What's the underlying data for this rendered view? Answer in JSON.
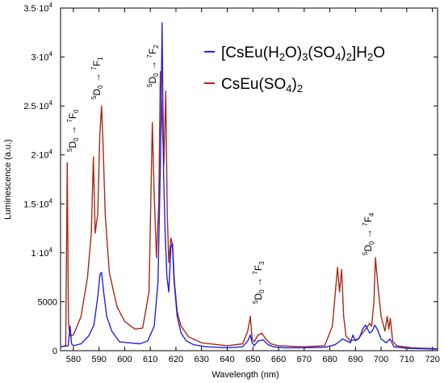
{
  "chart_data": {
    "type": "line",
    "xlabel": "Wavelength (nm)",
    "ylabel": "Luminescence (a.u.)",
    "xlim": [
      575,
      722
    ],
    "ylim": [
      0,
      35000
    ],
    "x_ticks": [
      {
        "value": 580,
        "label": "580"
      },
      {
        "value": 590,
        "label": "590"
      },
      {
        "value": 600,
        "label": "600"
      },
      {
        "value": 610,
        "label": "610"
      },
      {
        "value": 620,
        "label": "620"
      },
      {
        "value": 630,
        "label": "630"
      },
      {
        "value": 640,
        "label": "640"
      },
      {
        "value": 650,
        "label": "650"
      },
      {
        "value": 660,
        "label": "660"
      },
      {
        "value": 670,
        "label": "670"
      },
      {
        "value": 680,
        "label": "680"
      },
      {
        "value": 690,
        "label": "690"
      },
      {
        "value": 700,
        "label": "700"
      },
      {
        "value": 710,
        "label": "710"
      },
      {
        "value": 720,
        "label": "720"
      }
    ],
    "y_ticks": [
      {
        "value": 0,
        "mant": "0",
        "exp": ""
      },
      {
        "value": 5000,
        "mant": "5000",
        "exp": ""
      },
      {
        "value": 10000,
        "mant": "1·10",
        "exp": "4"
      },
      {
        "value": 15000,
        "mant": "1.5·10",
        "exp": "4"
      },
      {
        "value": 20000,
        "mant": "2·10",
        "exp": "4"
      },
      {
        "value": 25000,
        "mant": "2.5·10",
        "exp": "4"
      },
      {
        "value": 30000,
        "mant": "3·10",
        "exp": "4"
      },
      {
        "value": 35000,
        "mant": "3.5·10",
        "exp": "4"
      }
    ],
    "grid": false,
    "legend_position": "top-right",
    "series": [
      {
        "name": "[CsEu(H2O)3(SO4)2]H2O",
        "legend": {
          "a": "[CsEu(H",
          "b": "2",
          "c": "O)",
          "d": "3",
          "e": "(SO",
          "f": "4",
          "g": ")",
          "h": "2",
          "i": "]H",
          "j": "2",
          "k": "O"
        },
        "color": "#2222dd",
        "x": [
          575,
          578,
          578.7,
          579.3,
          580,
          583,
          586,
          588,
          589.5,
          590.4,
          591,
          591.8,
          593,
          595,
          598,
          602,
          606,
          609,
          611.5,
          613,
          614,
          614.6,
          615.2,
          615.8,
          616.5,
          617.2,
          618,
          618.6,
          619.3,
          620.5,
          622,
          624,
          627,
          632,
          640,
          646,
          648,
          649,
          649.7,
          650.5,
          652,
          654,
          656,
          658,
          662,
          670,
          678,
          682,
          685,
          688,
          689,
          690,
          691.5,
          693,
          694,
          695.5,
          696.5,
          697.5,
          698.5,
          700,
          702,
          703.5,
          705,
          710,
          716,
          722
        ],
        "y": [
          400,
          500,
          2500,
          700,
          500,
          700,
          1500,
          2600,
          5500,
          7800,
          8000,
          6000,
          3500,
          2000,
          900,
          800,
          700,
          1000,
          2500,
          7000,
          20000,
          33500,
          18000,
          12000,
          7500,
          6000,
          10500,
          11000,
          7000,
          3500,
          1800,
          1000,
          600,
          400,
          300,
          400,
          1000,
          1600,
          800,
          500,
          1000,
          1100,
          600,
          400,
          300,
          300,
          350,
          600,
          1200,
          800,
          1600,
          1000,
          1300,
          2300,
          2600,
          1800,
          2000,
          2600,
          2200,
          1200,
          800,
          1200,
          400,
          250,
          200,
          150
        ]
      },
      {
        "name": "CsEu(SO4)2",
        "legend": {
          "a": "CsEu(SO",
          "b": "4",
          "c": ")",
          "d": "2"
        },
        "color": "#a52a1a",
        "x": [
          575,
          577,
          577.6,
          578.1,
          578.6,
          580,
          583,
          585.5,
          587,
          587.8,
          588.5,
          589.5,
          590.3,
          591,
          591.6,
          592.4,
          594,
          597,
          600,
          604,
          607,
          609.5,
          610.8,
          611.5,
          612.4,
          613.3,
          613.9,
          614.7,
          615.3,
          616,
          616.6,
          617.2,
          618,
          618.7,
          619.4,
          620.5,
          622,
          625,
          630,
          640,
          646,
          648,
          649,
          649.7,
          650.5,
          652,
          653.5,
          655,
          657,
          660,
          670,
          678,
          681,
          683,
          683.8,
          684.6,
          685.4,
          686.3,
          688,
          691,
          694,
          695.5,
          696.3,
          697.2,
          697.8,
          698.6,
          700,
          701.5,
          702.4,
          703,
          703.6,
          704.5,
          706,
          712,
          722
        ],
        "y": [
          400,
          500,
          19200,
          3000,
          1500,
          1600,
          3500,
          7500,
          12000,
          19800,
          12000,
          14000,
          22000,
          25000,
          21000,
          14000,
          8000,
          4500,
          3000,
          2200,
          2300,
          6000,
          23300,
          16000,
          9500,
          15000,
          28500,
          23000,
          19000,
          26500,
          14000,
          9000,
          11500,
          10800,
          7000,
          4000,
          2500,
          1400,
          800,
          500,
          700,
          2000,
          3500,
          1200,
          900,
          1600,
          1800,
          1200,
          700,
          500,
          400,
          500,
          2500,
          8500,
          6000,
          8300,
          3500,
          1500,
          1000,
          1200,
          2200,
          2800,
          2500,
          5000,
          9500,
          7000,
          3500,
          2000,
          3500,
          2200,
          3300,
          1000,
          500,
          300,
          200
        ]
      }
    ],
    "annotations": [
      {
        "id": "7F0",
        "pre": "5",
        "main": "D",
        "sub": "0",
        "arrow": " → ",
        "post": "7",
        "main2": "F",
        "sub2": "0"
      },
      {
        "id": "7F1",
        "pre": "5",
        "main": "D",
        "sub": "0",
        "arrow": " → ",
        "post": "7",
        "main2": "F",
        "sub2": "1"
      },
      {
        "id": "7F2",
        "pre": "5",
        "main": "D",
        "sub": "0",
        "arrow": " → ",
        "post": "7",
        "main2": "F",
        "sub2": "2"
      },
      {
        "id": "7F3",
        "pre": "5",
        "main": "D",
        "sub": "0",
        "arrow": " → ",
        "post": "7",
        "main2": "F",
        "sub2": "3"
      },
      {
        "id": "7F4",
        "pre": "5",
        "main": "D",
        "sub": "0",
        "arrow": " → ",
        "post": "7",
        "main2": "F",
        "sub2": "4"
      }
    ]
  }
}
